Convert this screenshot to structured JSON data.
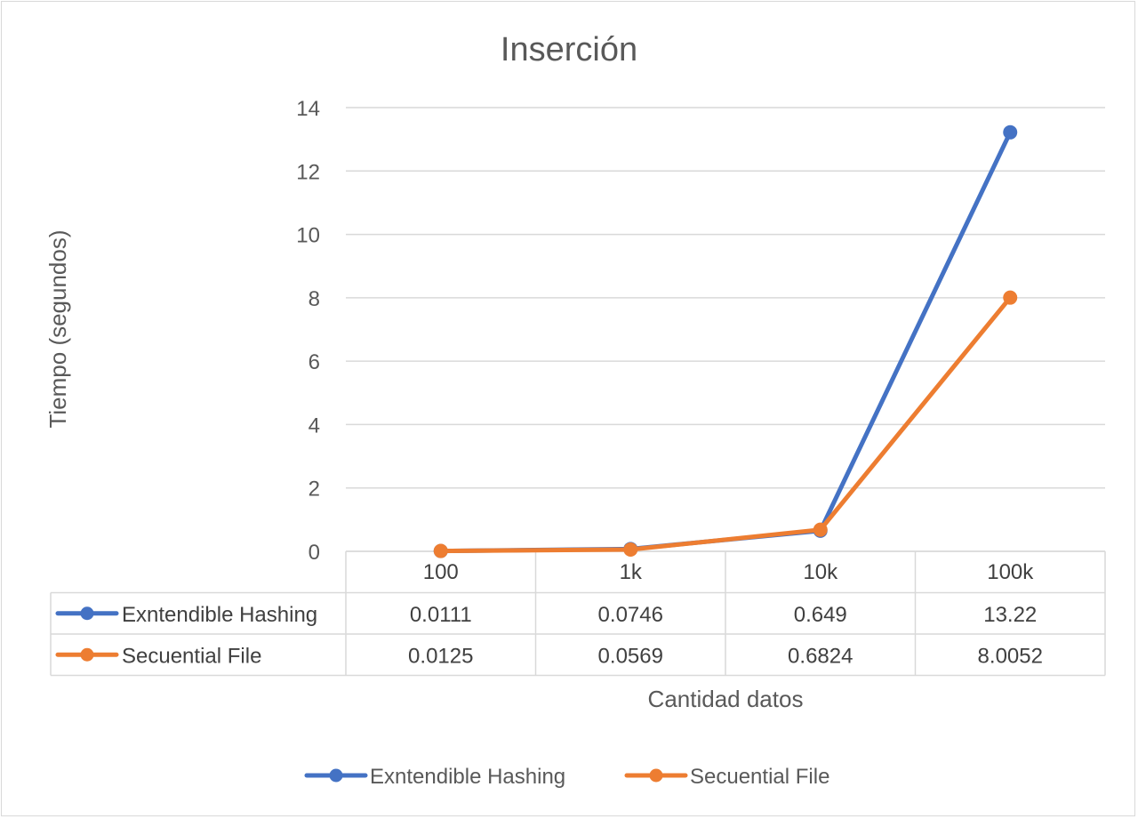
{
  "chart_data": {
    "type": "line",
    "title": "Inserción",
    "xlabel": "Cantidad datos",
    "ylabel": "Tiempo (segundos)",
    "categories": [
      "100",
      "1k",
      "10k",
      "100k"
    ],
    "ylim": [
      0,
      14
    ],
    "yticks": [
      "0",
      "2",
      "4",
      "6",
      "8",
      "10",
      "12",
      "14"
    ],
    "grid": true,
    "legend_position": "bottom",
    "data_table": true,
    "series": [
      {
        "name": "Exntendible Hashing",
        "color": "#4472c4",
        "values": [
          0.0111,
          0.0746,
          0.649,
          13.22
        ],
        "labels": [
          "0.0111",
          "0.0746",
          "0.649",
          "13.22"
        ]
      },
      {
        "name": "Secuential File",
        "color": "#ed7d31",
        "values": [
          0.0125,
          0.0569,
          0.6824,
          8.0052
        ],
        "labels": [
          "0.0125",
          "0.0569",
          "0.6824",
          "8.0052"
        ]
      }
    ]
  }
}
